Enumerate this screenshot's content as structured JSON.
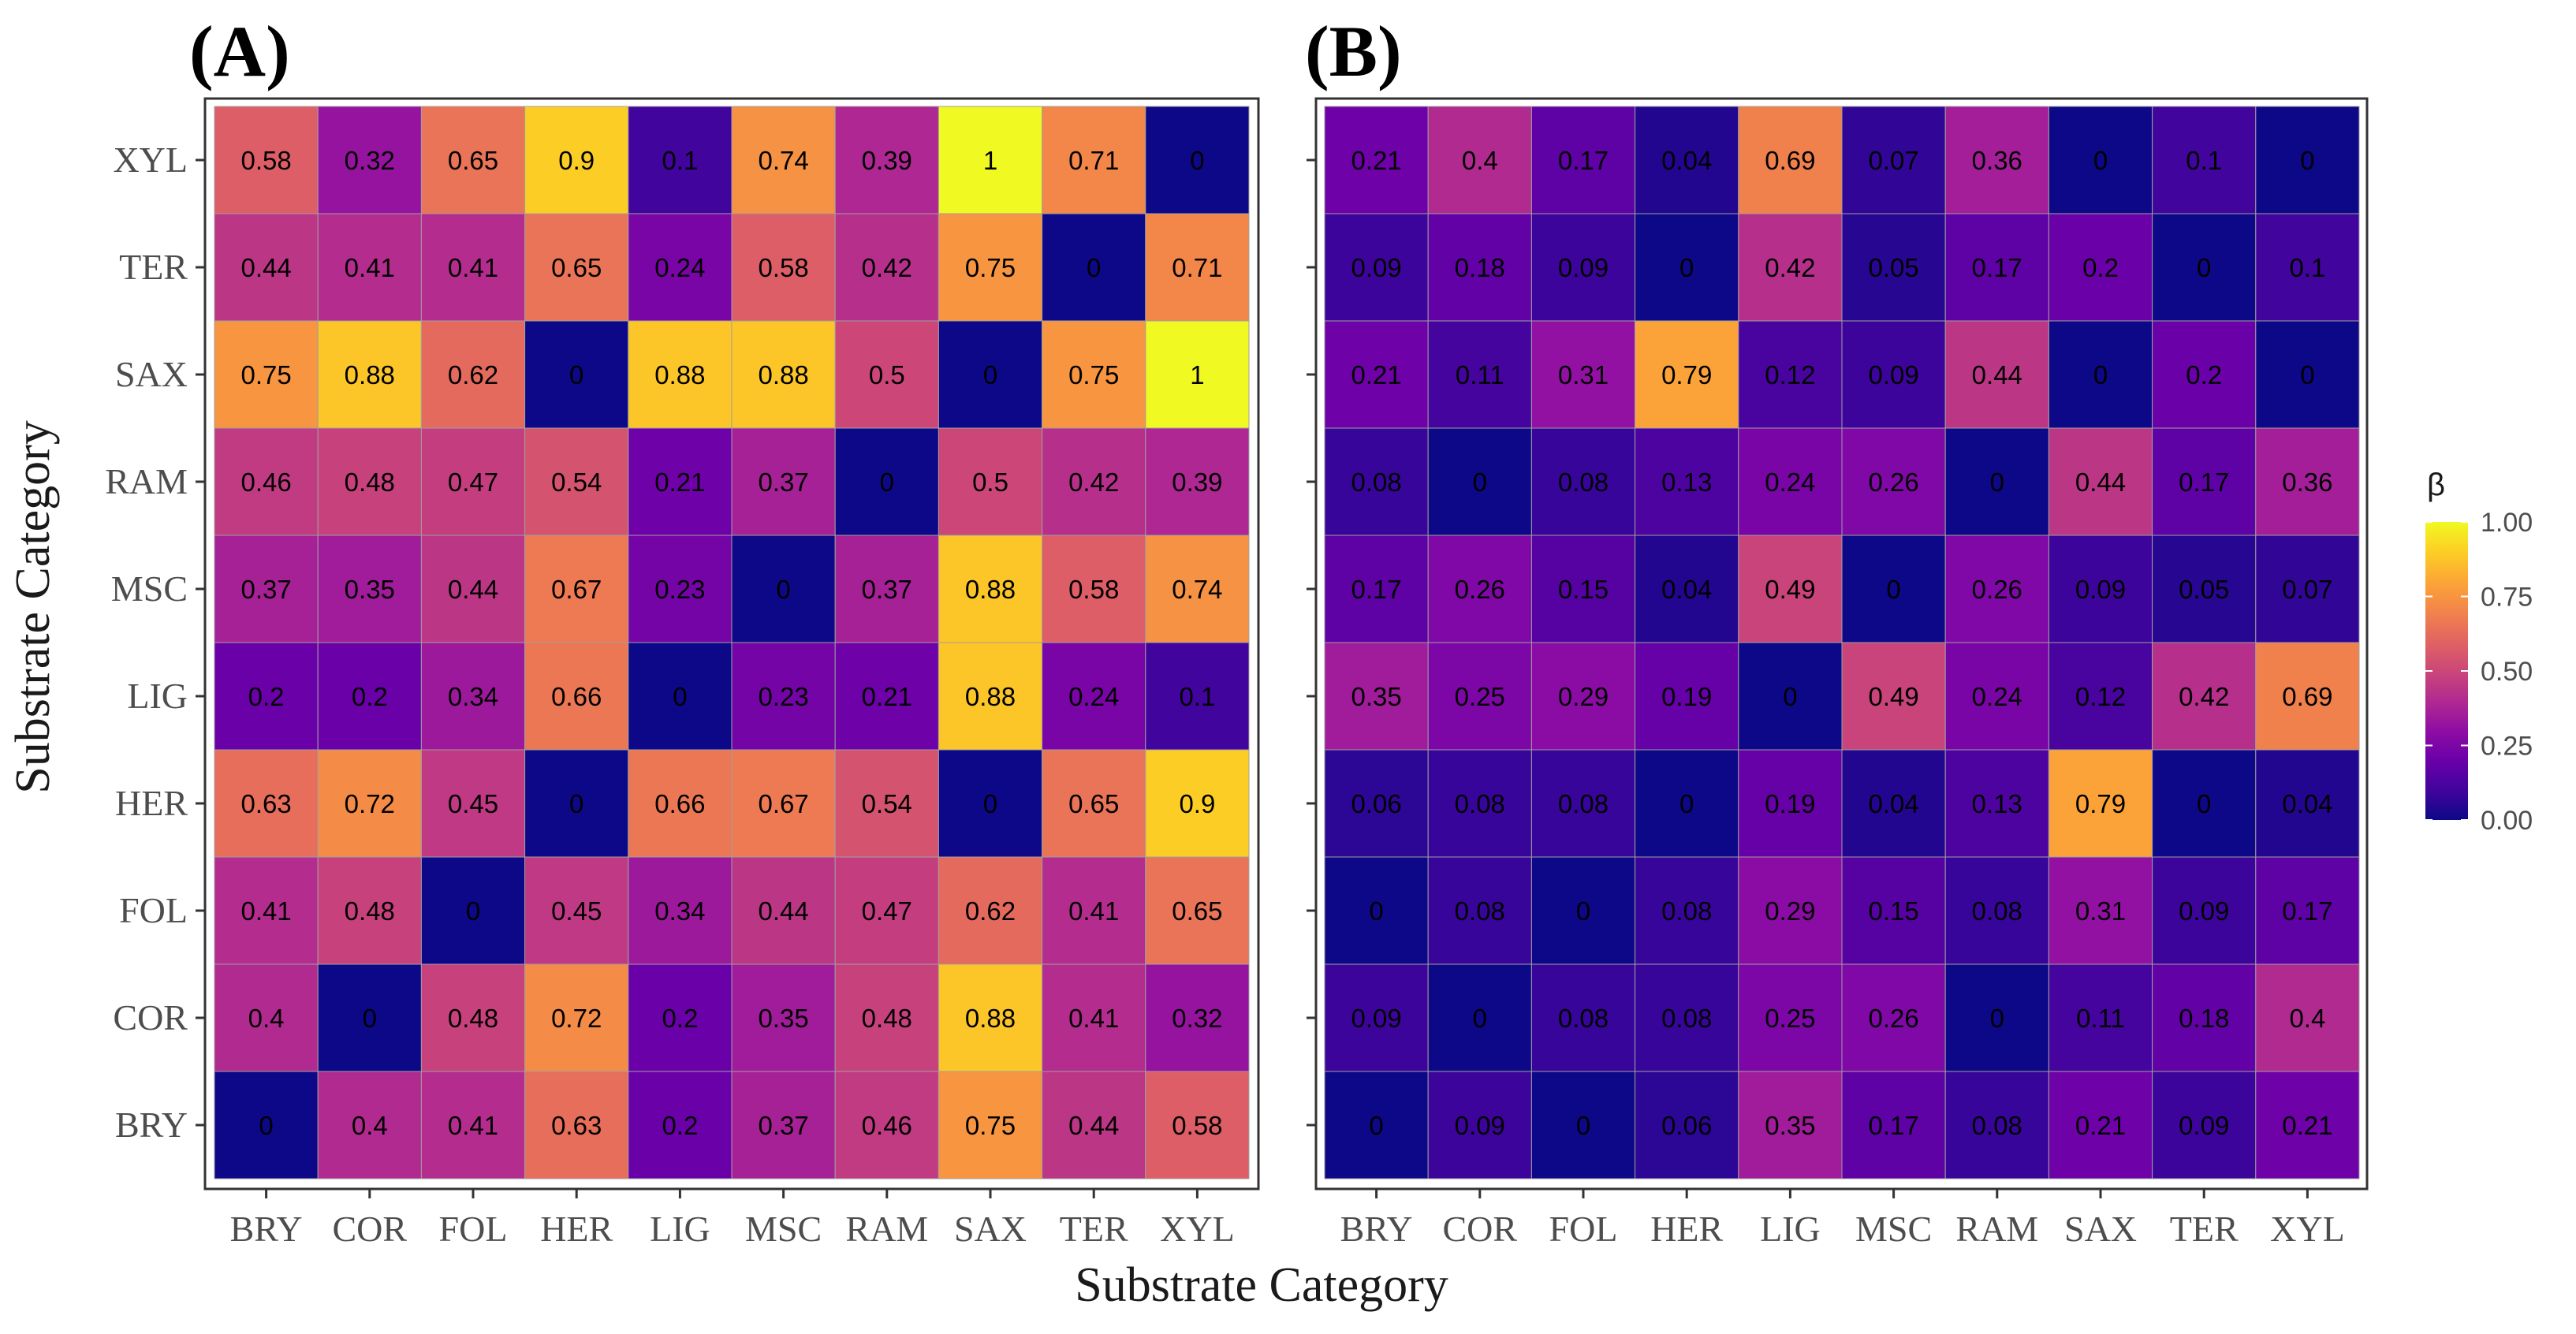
{
  "chart_data": [
    {
      "type": "heatmap",
      "title": "(A)",
      "xlabel": "Substrate Category",
      "ylabel": "Substrate Category",
      "categories": [
        "BRY",
        "COR",
        "FOL",
        "HER",
        "LIG",
        "MSC",
        "RAM",
        "SAX",
        "TER",
        "XYL"
      ],
      "rows": [
        {
          "y": "XYL",
          "values": [
            0.58,
            0.32,
            0.65,
            0.9,
            0.1,
            0.74,
            0.39,
            1,
            0.71,
            0
          ]
        },
        {
          "y": "TER",
          "values": [
            0.44,
            0.41,
            0.41,
            0.65,
            0.24,
            0.58,
            0.42,
            0.75,
            0,
            0.71
          ]
        },
        {
          "y": "SAX",
          "values": [
            0.75,
            0.88,
            0.62,
            0,
            0.88,
            0.88,
            0.5,
            0,
            0.75,
            1
          ]
        },
        {
          "y": "RAM",
          "values": [
            0.46,
            0.48,
            0.47,
            0.54,
            0.21,
            0.37,
            0,
            0.5,
            0.42,
            0.39
          ]
        },
        {
          "y": "MSC",
          "values": [
            0.37,
            0.35,
            0.44,
            0.67,
            0.23,
            0,
            0.37,
            0.88,
            0.58,
            0.74
          ]
        },
        {
          "y": "LIG",
          "values": [
            0.2,
            0.2,
            0.34,
            0.66,
            0,
            0.23,
            0.21,
            0.88,
            0.24,
            0.1
          ]
        },
        {
          "y": "HER",
          "values": [
            0.63,
            0.72,
            0.45,
            0,
            0.66,
            0.67,
            0.54,
            0,
            0.65,
            0.9
          ]
        },
        {
          "y": "FOL",
          "values": [
            0.41,
            0.48,
            0,
            0.45,
            0.34,
            0.44,
            0.47,
            0.62,
            0.41,
            0.65
          ]
        },
        {
          "y": "COR",
          "values": [
            0.4,
            0,
            0.48,
            0.72,
            0.2,
            0.35,
            0.48,
            0.88,
            0.41,
            0.32
          ]
        },
        {
          "y": "BRY",
          "values": [
            0,
            0.4,
            0.41,
            0.63,
            0.2,
            0.37,
            0.46,
            0.75,
            0.44,
            0.58
          ]
        }
      ]
    },
    {
      "type": "heatmap",
      "title": "(B)",
      "xlabel": "Substrate Category",
      "ylabel": "",
      "categories": [
        "BRY",
        "COR",
        "FOL",
        "HER",
        "LIG",
        "MSC",
        "RAM",
        "SAX",
        "TER",
        "XYL"
      ],
      "rows": [
        {
          "y": "XYL",
          "values": [
            0.21,
            0.4,
            0.17,
            0.04,
            0.69,
            0.07,
            0.36,
            0,
            0.1,
            0
          ]
        },
        {
          "y": "TER",
          "values": [
            0.09,
            0.18,
            0.09,
            0,
            0.42,
            0.05,
            0.17,
            0.2,
            0,
            0.1
          ]
        },
        {
          "y": "SAX",
          "values": [
            0.21,
            0.11,
            0.31,
            0.79,
            0.12,
            0.09,
            0.44,
            0,
            0.2,
            0
          ]
        },
        {
          "y": "RAM",
          "values": [
            0.08,
            0,
            0.08,
            0.13,
            0.24,
            0.26,
            0,
            0.44,
            0.17,
            0.36
          ]
        },
        {
          "y": "MSC",
          "values": [
            0.17,
            0.26,
            0.15,
            0.04,
            0.49,
            0,
            0.26,
            0.09,
            0.05,
            0.07
          ]
        },
        {
          "y": "LIG",
          "values": [
            0.35,
            0.25,
            0.29,
            0.19,
            0,
            0.49,
            0.24,
            0.12,
            0.42,
            0.69
          ]
        },
        {
          "y": "HER",
          "values": [
            0.06,
            0.08,
            0.08,
            0,
            0.19,
            0.04,
            0.13,
            0.79,
            0,
            0.04
          ]
        },
        {
          "y": "FOL",
          "values": [
            0,
            0.08,
            0,
            0.08,
            0.29,
            0.15,
            0.08,
            0.31,
            0.09,
            0.17
          ]
        },
        {
          "y": "COR",
          "values": [
            0.09,
            0,
            0.08,
            0.08,
            0.25,
            0.26,
            0,
            0.11,
            0.18,
            0.4
          ]
        },
        {
          "y": "BRY",
          "values": [
            0,
            0.09,
            0,
            0.06,
            0.35,
            0.17,
            0.08,
            0.21,
            0.09,
            0.21
          ]
        }
      ]
    }
  ],
  "legend": {
    "title": "β",
    "range": [
      0,
      1
    ],
    "ticks": [
      "1.00",
      "0.75",
      "0.50",
      "0.25",
      "0.00"
    ],
    "tick_values": [
      1.0,
      0.75,
      0.5,
      0.25,
      0.0
    ],
    "colormap": "plasma"
  },
  "shared_xlabel": "Substrate Category",
  "colors": {
    "plasma_stops": [
      "#0d0887",
      "#41049d",
      "#6a00a8",
      "#8f0da4",
      "#b12a90",
      "#cc4778",
      "#e16462",
      "#f2844b",
      "#fca636",
      "#fcce25",
      "#f0f921"
    ],
    "cell_border": "#a0a0a0",
    "panel_border": "#333333"
  }
}
